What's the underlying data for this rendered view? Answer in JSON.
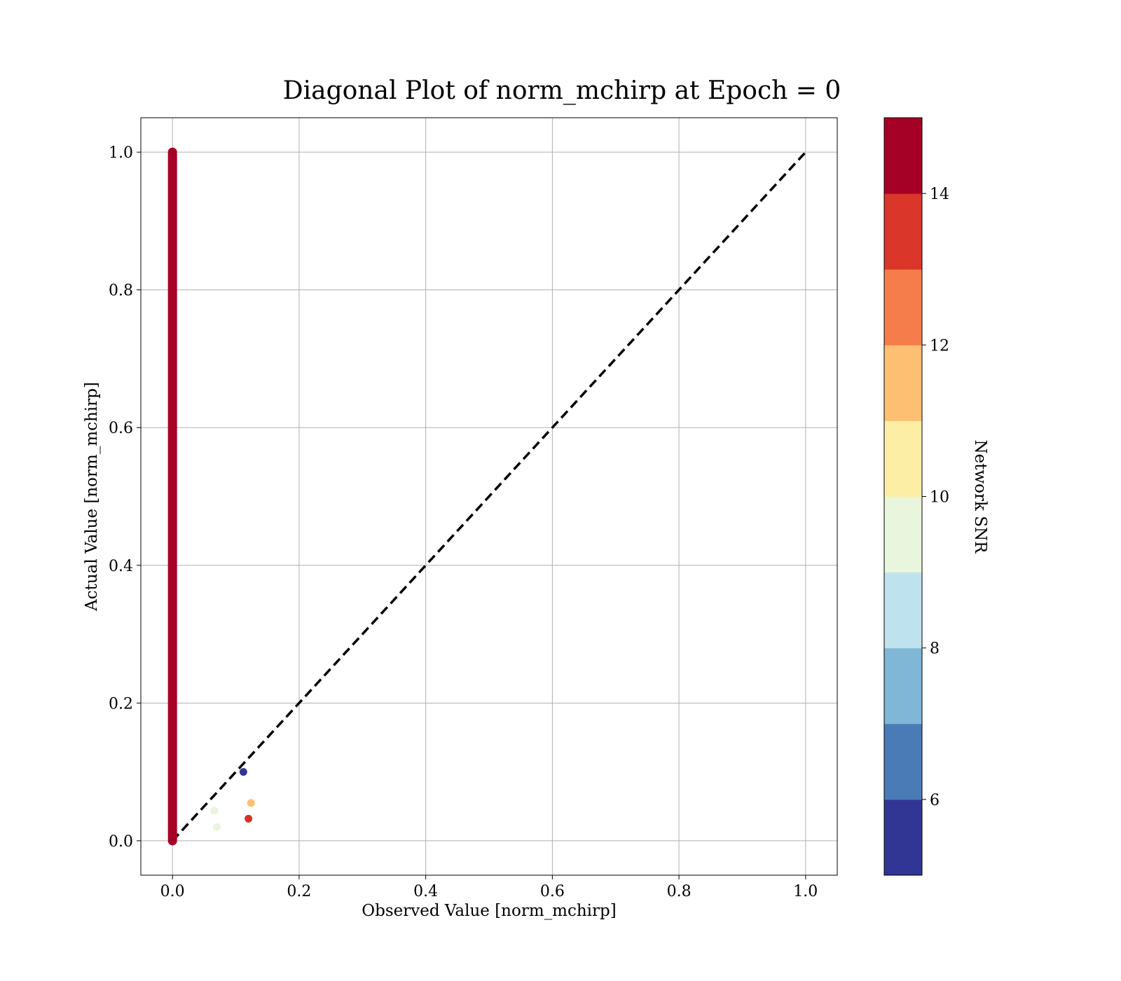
{
  "chart_data": {
    "type": "scatter",
    "title": "Diagonal Plot of norm_mchirp at Epoch = 0",
    "xlabel": "Observed Value [norm_mchirp]",
    "ylabel": "Actual Value [norm_mchirp]",
    "xlim": [
      -0.05,
      1.05
    ],
    "ylim": [
      -0.05,
      1.05
    ],
    "x_ticks": [
      "0.0",
      "0.2",
      "0.4",
      "0.6",
      "0.8",
      "1.0"
    ],
    "y_ticks": [
      "0.0",
      "0.2",
      "0.4",
      "0.6",
      "0.8",
      "1.0"
    ],
    "grid": true,
    "diagonal_line": {
      "x": [
        0,
        1
      ],
      "y": [
        0,
        1
      ],
      "style": "dashed",
      "color": "#000000"
    },
    "vertical_cluster": {
      "x": 0.0,
      "y_min": 0.0,
      "y_max": 1.0,
      "snr": 15,
      "color": "#a50026"
    },
    "points": [
      {
        "x": 0.112,
        "y": 0.1,
        "snr": 5.5,
        "color": "#313695"
      },
      {
        "x": 0.124,
        "y": 0.055,
        "snr": 11.5,
        "color": "#fdbf71"
      },
      {
        "x": 0.12,
        "y": 0.032,
        "snr": 13.5,
        "color": "#d73027"
      },
      {
        "x": 0.066,
        "y": 0.044,
        "snr": 9.5,
        "color": "#e9f5dc"
      },
      {
        "x": 0.07,
        "y": 0.02,
        "snr": 9.5,
        "color": "#e9f5dc"
      }
    ],
    "colorbar": {
      "label": "Network SNR",
      "vmin": 5,
      "vmax": 15,
      "ticks": [
        "6",
        "8",
        "10",
        "12",
        "14"
      ],
      "tick_values": [
        6,
        8,
        10,
        12,
        14
      ],
      "colors": [
        "#313695",
        "#4a7bb7",
        "#80b6d6",
        "#bfe3ee",
        "#e9f5dc",
        "#fdeea5",
        "#fdbf71",
        "#f57d4b",
        "#da372a",
        "#a50026"
      ]
    }
  }
}
